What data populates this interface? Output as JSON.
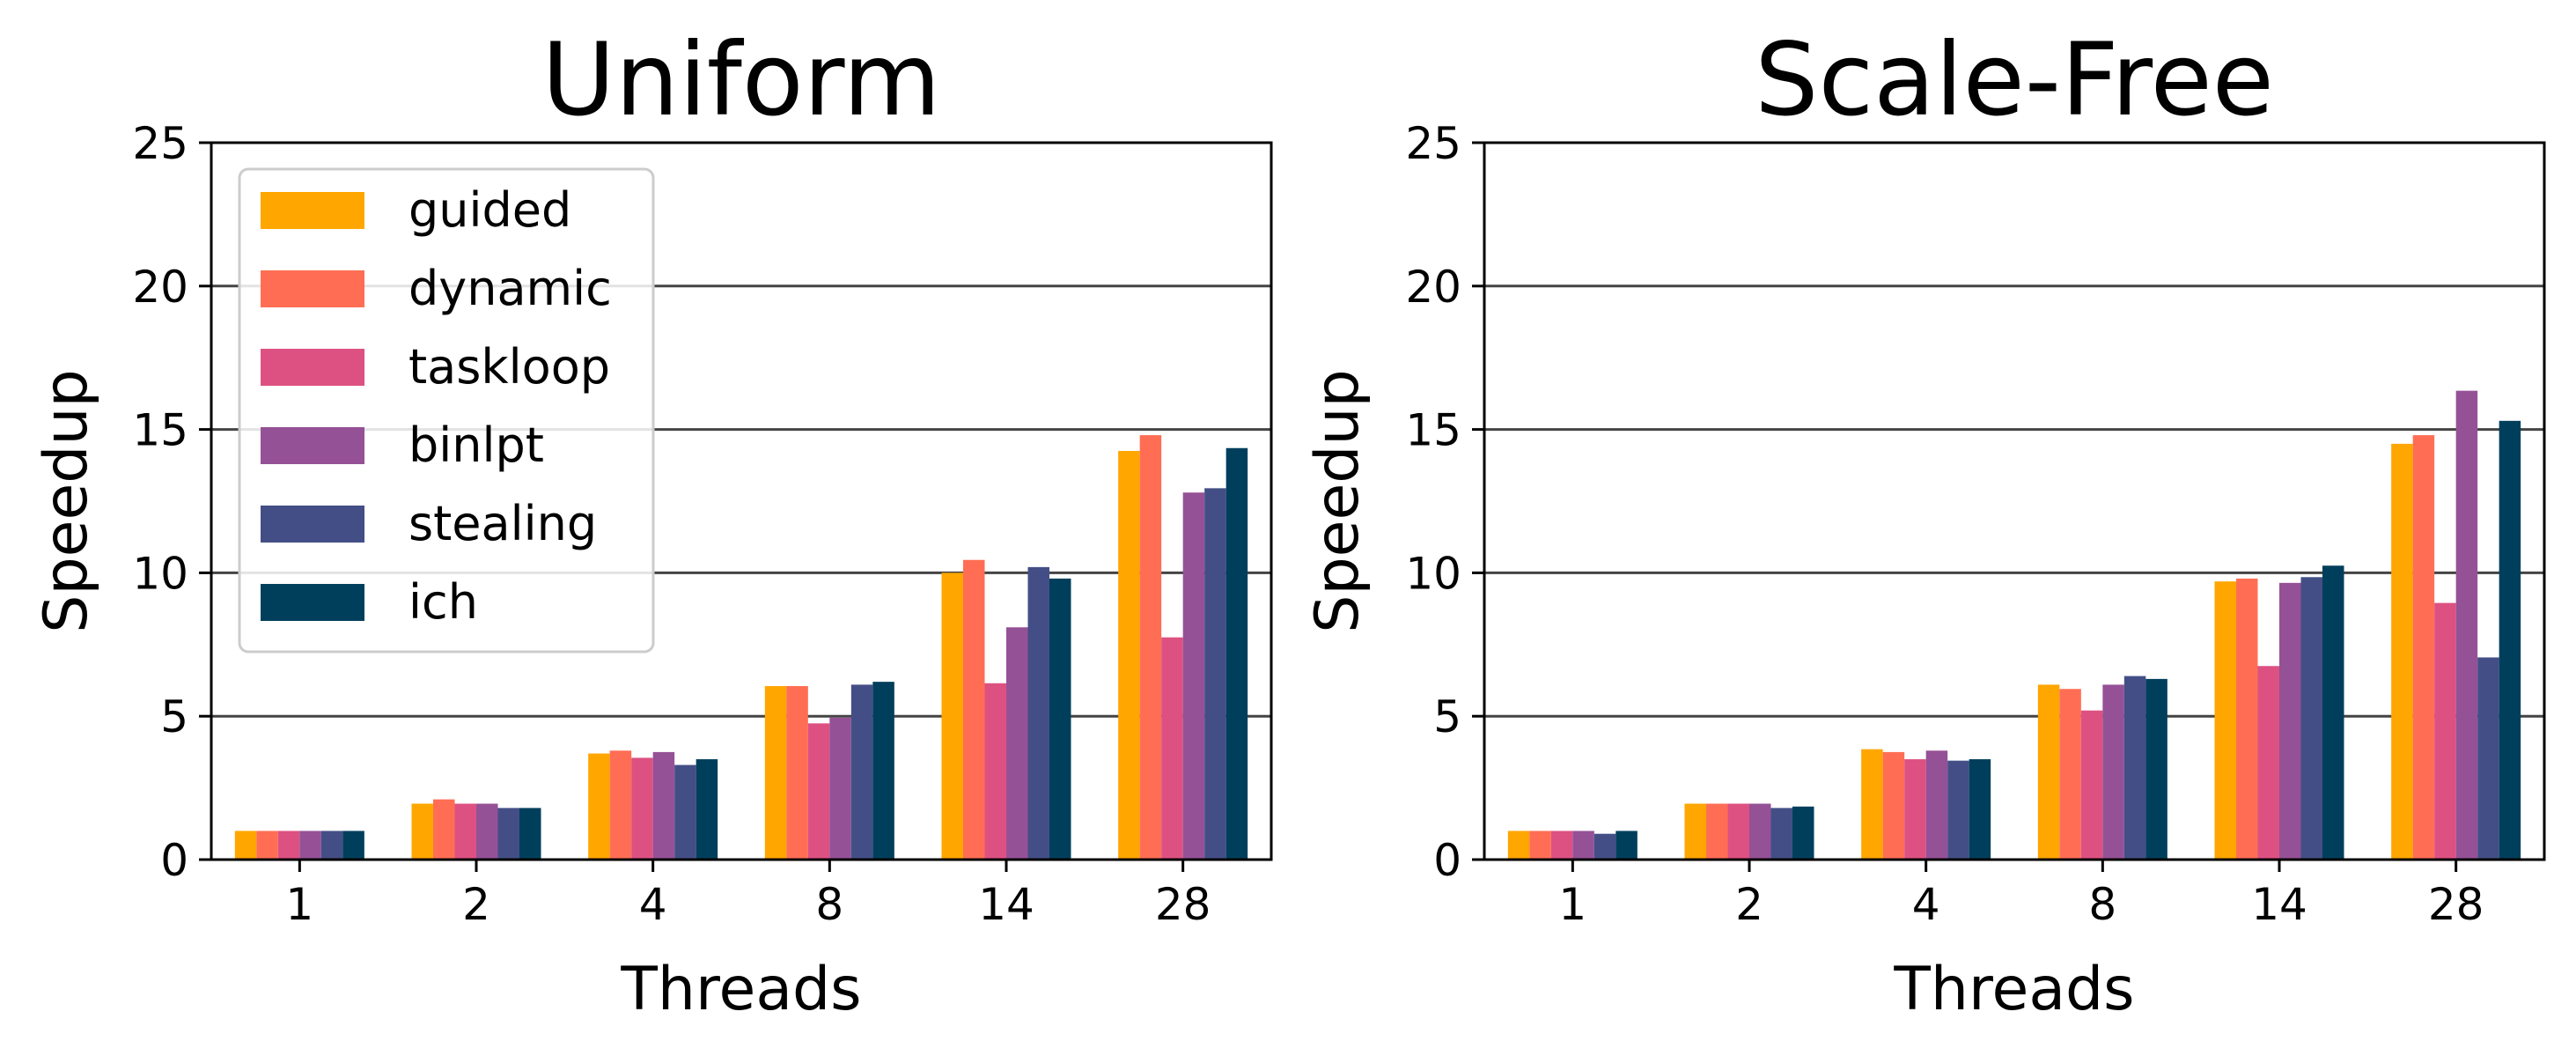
{
  "chart_data": [
    {
      "type": "bar",
      "title": "Uniform",
      "xlabel": "Threads",
      "ylabel": "Speedup",
      "ylim": [
        0,
        25
      ],
      "yticks": [
        0,
        5,
        10,
        15,
        20,
        25
      ],
      "grid": "horizontal",
      "legend": "top-left",
      "categories": [
        "1",
        "2",
        "4",
        "8",
        "14",
        "28"
      ],
      "series": [
        {
          "name": "guided",
          "color": "#ffa600",
          "values": [
            1.0,
            1.95,
            3.7,
            6.05,
            10.0,
            14.25
          ]
        },
        {
          "name": "dynamic",
          "color": "#ff6e54",
          "values": [
            1.0,
            2.1,
            3.8,
            6.05,
            10.45,
            14.8
          ]
        },
        {
          "name": "taskloop",
          "color": "#dd5182",
          "values": [
            1.0,
            1.95,
            3.55,
            4.75,
            6.15,
            7.75
          ]
        },
        {
          "name": "binlpt",
          "color": "#955196",
          "values": [
            1.0,
            1.95,
            3.75,
            4.95,
            8.1,
            12.8
          ]
        },
        {
          "name": "stealing",
          "color": "#444e86",
          "values": [
            1.0,
            1.8,
            3.3,
            6.1,
            10.2,
            12.95
          ]
        },
        {
          "name": "ich",
          "color": "#003f5c",
          "values": [
            1.0,
            1.8,
            3.5,
            6.2,
            9.8,
            14.35
          ]
        }
      ]
    },
    {
      "type": "bar",
      "title": "Scale-Free",
      "xlabel": "Threads",
      "ylabel": "Speedup",
      "ylim": [
        0,
        25
      ],
      "yticks": [
        0,
        5,
        10,
        15,
        20,
        25
      ],
      "grid": "horizontal",
      "categories": [
        "1",
        "2",
        "4",
        "8",
        "14",
        "28"
      ],
      "series": [
        {
          "name": "guided",
          "color": "#ffa600",
          "values": [
            1.0,
            1.95,
            3.85,
            6.1,
            9.7,
            14.5
          ]
        },
        {
          "name": "dynamic",
          "color": "#ff6e54",
          "values": [
            1.0,
            1.95,
            3.75,
            5.95,
            9.8,
            14.8
          ]
        },
        {
          "name": "taskloop",
          "color": "#dd5182",
          "values": [
            1.0,
            1.95,
            3.5,
            5.2,
            6.75,
            8.95
          ]
        },
        {
          "name": "binlpt",
          "color": "#955196",
          "values": [
            1.0,
            1.95,
            3.8,
            6.1,
            9.65,
            16.35
          ]
        },
        {
          "name": "stealing",
          "color": "#444e86",
          "values": [
            0.9,
            1.8,
            3.45,
            6.4,
            9.85,
            7.05
          ]
        },
        {
          "name": "ich",
          "color": "#003f5c",
          "values": [
            1.0,
            1.85,
            3.5,
            6.3,
            10.25,
            15.3
          ]
        }
      ]
    }
  ]
}
